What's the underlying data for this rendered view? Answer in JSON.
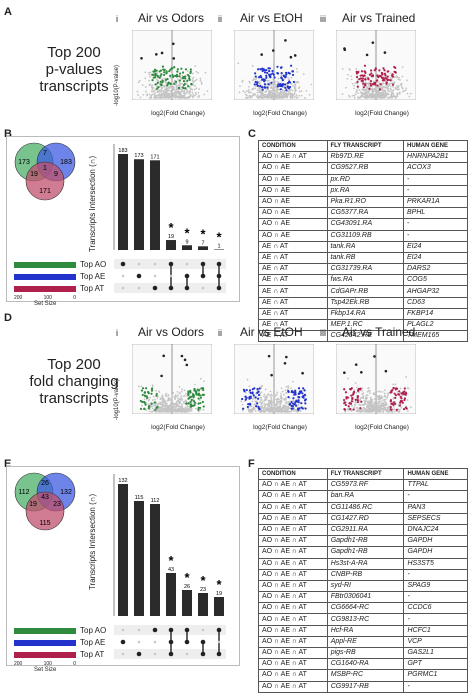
{
  "panelA": {
    "label": "A",
    "title": "Top 200\np-values\ntranscripts",
    "plots": [
      {
        "num": "i",
        "title": "Air vs Odors",
        "color": "#2e8b3d"
      },
      {
        "num": "ii",
        "title": "Air vs EtOH",
        "color": "#2233cc"
      },
      {
        "num": "iii",
        "title": "Air vs Trained",
        "color": "#b0204d"
      }
    ],
    "ylabel": "-log10(P-value)",
    "xlabel": "log2(Fold Change)"
  },
  "panelB": {
    "label": "B",
    "venn": {
      "ao": "173",
      "ae": "183",
      "at": "171",
      "ao_ae": "7",
      "ao_at": "19",
      "ae_at": "9",
      "all": "1"
    },
    "bars": [
      "183",
      "173",
      "171",
      "19",
      "9",
      "7",
      "1"
    ],
    "stars": [
      "*",
      "*",
      "*",
      "*"
    ],
    "ylabel": "Transcripts Intersection (∩)",
    "sets": [
      "Top AO",
      "Top AE",
      "Top AT"
    ],
    "setsize_label": "Set Size",
    "setsize_ticks": [
      "200",
      "100",
      "0"
    ]
  },
  "panelC": {
    "label": "C",
    "headers": [
      "CONDITION",
      "FLY TRANSCRIPT",
      "HUMAN GENE"
    ],
    "rows": [
      [
        "AO ∩ AE ∩ AT",
        "Rb97D.RE",
        "HNRNPA2B1"
      ],
      [
        "AO ∩ AE",
        "CG9527.RB",
        "ACOX3"
      ],
      [
        "AO ∩ AE",
        "px.RD",
        "-"
      ],
      [
        "AO ∩ AE",
        "px.RA",
        "-"
      ],
      [
        "AO ∩ AE",
        "Pka.R1.RO",
        "PRKAR1A"
      ],
      [
        "AO ∩ AE",
        "CG5377.RA",
        "BPHL"
      ],
      [
        "AO ∩ AE",
        "CG43091.RA",
        "-"
      ],
      [
        "AO ∩ AE",
        "CG31109.RB",
        "-"
      ],
      [
        "AE ∩ AT",
        "tank.RA",
        "EI24"
      ],
      [
        "AE ∩ AT",
        "tank.RB",
        "EI24"
      ],
      [
        "AE ∩ AT",
        "CG31739.RA",
        "DARS2"
      ],
      [
        "AE ∩ AT",
        "fws.RA",
        "COG5"
      ],
      [
        "AE ∩ AT",
        "CdGAPr.RB",
        "AHGAP32"
      ],
      [
        "AE ∩ AT",
        "Tsp42Ek.RB",
        "CD63"
      ],
      [
        "AE ∩ AT",
        "Fkbp14.RA",
        "FKBP14"
      ],
      [
        "AE ∩ AT",
        "MEP.1.RC",
        "PLAGL2"
      ],
      [
        "AE ∩ AT",
        "CG42542.RE",
        "TMEM165"
      ]
    ]
  },
  "panelD": {
    "label": "D",
    "title": "Top 200\nfold changing\ntranscripts",
    "plots": [
      {
        "num": "i",
        "title": "Air vs Odors",
        "color": "#2e8b3d"
      },
      {
        "num": "ii",
        "title": "Air vs EtOH",
        "color": "#2233cc"
      },
      {
        "num": "iii",
        "title": "Air vs Trained",
        "color": "#b0204d"
      }
    ],
    "ylabel": "-log10(P-value)",
    "xlabel": "log2(Fold Change)"
  },
  "panelE": {
    "label": "E",
    "venn": {
      "ao": "112",
      "ae": "132",
      "at": "115",
      "ao_ae": "26",
      "ao_at": "19",
      "ae_at": "23",
      "all": "43"
    },
    "bars": [
      "132",
      "115",
      "112",
      "43",
      "26",
      "23",
      "19"
    ],
    "stars": [
      "*",
      "*",
      "*",
      "*"
    ],
    "ylabel": "Transcripts Intersection (∩)",
    "sets": [
      "Top AO",
      "Top AE",
      "Top AT"
    ],
    "setsize_label": "Set Size",
    "setsize_ticks": [
      "200",
      "100",
      "0"
    ]
  },
  "panelF": {
    "label": "F",
    "headers": [
      "CONDITION",
      "FLY TRANSCRIPT",
      "HUMAN GENE"
    ],
    "rows": [
      [
        "AO ∩ AE ∩ AT",
        "CG5973.RF",
        "TTPAL"
      ],
      [
        "AO ∩ AE ∩ AT",
        "ban.RA",
        "-"
      ],
      [
        "AO ∩ AE ∩ AT",
        "CG11486.RC",
        "PAN3"
      ],
      [
        "AO ∩ AE ∩ AT",
        "CG1427.RD",
        "SEPSECS"
      ],
      [
        "AO ∩ AE ∩ AT",
        "CG2911.RA",
        "DNAJC24"
      ],
      [
        "AO ∩ AE ∩ AT",
        "Gapdh1-RB",
        "GAPDH"
      ],
      [
        "AO ∩ AE ∩ AT",
        "Gapdh1-RB",
        "GAPDH"
      ],
      [
        "AO ∩ AE ∩ AT",
        "Hs3st-A-RA",
        "HS3ST5"
      ],
      [
        "AO ∩ AE ∩ AT",
        "CNBP-RB",
        "-"
      ],
      [
        "AO ∩ AE ∩ AT",
        "syd-RI",
        "SPAG9"
      ],
      [
        "AO ∩ AE ∩ AT",
        "FBtr0306041",
        "-"
      ],
      [
        "AO ∩ AE ∩ AT",
        "CG6664-RC",
        "CCDC6"
      ],
      [
        "AO ∩ AE ∩ AT",
        "CG9813-RC",
        "-"
      ],
      [
        "AO ∩ AE ∩ AT",
        "Hcf-RA",
        "HCFC1"
      ],
      [
        "AO ∩ AE ∩ AT",
        "Appl-RE",
        "VCP"
      ],
      [
        "AO ∩ AE ∩ AT",
        "pigs-RB",
        "GAS2L1"
      ],
      [
        "AO ∩ AE ∩ AT",
        "CG1640-RA",
        "GPT"
      ],
      [
        "AO ∩ AE ∩ AT",
        "MSBP-RC",
        "PGRMC1"
      ],
      [
        "AO ∩ AE ∩ AT",
        "CG9917-RB",
        "-"
      ]
    ]
  },
  "colors": {
    "ao": "#2e8b3d",
    "ae": "#2233cc",
    "at": "#b0204d",
    "ao_venn": "#4caf6a",
    "ae_venn": "#3e5be0",
    "at_venn": "#c0506e"
  }
}
